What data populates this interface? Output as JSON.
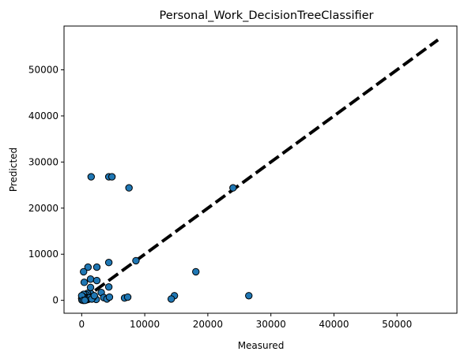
{
  "chart_data": {
    "type": "scatter",
    "title": "Personal_Work_DecisionTreeClassifier",
    "xlabel": "Measured",
    "ylabel": "Predicted",
    "xlim": [
      -2800,
      59500
    ],
    "ylim": [
      -2800,
      59500
    ],
    "xticks": [
      0,
      10000,
      20000,
      30000,
      40000,
      50000
    ],
    "yticks": [
      0,
      10000,
      20000,
      30000,
      40000,
      50000
    ],
    "grid": false,
    "point_color": "#1f77b4",
    "point_edge_color": "#000000",
    "reference_line": {
      "from": [
        0,
        0
      ],
      "to": [
        56500,
        56500
      ],
      "color": "#000000",
      "style": "dashed"
    },
    "points": [
      {
        "x": 1500,
        "y": 26800
      },
      {
        "x": 4300,
        "y": 26800
      },
      {
        "x": 4800,
        "y": 26800
      },
      {
        "x": 7500,
        "y": 24400
      },
      {
        "x": 24000,
        "y": 24400
      },
      {
        "x": 4300,
        "y": 8200
      },
      {
        "x": 8600,
        "y": 8600
      },
      {
        "x": 18100,
        "y": 6200
      },
      {
        "x": 1000,
        "y": 7200
      },
      {
        "x": 2400,
        "y": 7200
      },
      {
        "x": 300,
        "y": 6200
      },
      {
        "x": 1400,
        "y": 4600
      },
      {
        "x": 2400,
        "y": 4300
      },
      {
        "x": 400,
        "y": 3900
      },
      {
        "x": 4300,
        "y": 2900
      },
      {
        "x": 1400,
        "y": 2800
      },
      {
        "x": 3100,
        "y": 1700
      },
      {
        "x": 14700,
        "y": 1000
      },
      {
        "x": 26500,
        "y": 1000
      },
      {
        "x": 14200,
        "y": 300
      },
      {
        "x": 6800,
        "y": 500
      },
      {
        "x": 7300,
        "y": 700
      },
      {
        "x": 3500,
        "y": 600
      },
      {
        "x": 4000,
        "y": 300
      },
      {
        "x": 4400,
        "y": 700
      },
      {
        "x": 2300,
        "y": 200
      },
      {
        "x": 1800,
        "y": 700
      },
      {
        "x": 1500,
        "y": 1400
      },
      {
        "x": 1100,
        "y": 1000
      },
      {
        "x": 900,
        "y": 1500
      },
      {
        "x": 700,
        "y": 1200
      },
      {
        "x": 500,
        "y": 900
      },
      {
        "x": 300,
        "y": 1300
      },
      {
        "x": 200,
        "y": 800
      },
      {
        "x": 100,
        "y": 600
      },
      {
        "x": 0,
        "y": 400
      },
      {
        "x": 150,
        "y": 200
      },
      {
        "x": 300,
        "y": 100
      },
      {
        "x": 600,
        "y": 300
      },
      {
        "x": 800,
        "y": 500
      },
      {
        "x": 1000,
        "y": 200
      },
      {
        "x": 1200,
        "y": 500
      },
      {
        "x": 50,
        "y": 50
      },
      {
        "x": 400,
        "y": 500
      },
      {
        "x": 0,
        "y": 1000
      },
      {
        "x": 700,
        "y": 100
      },
      {
        "x": 1600,
        "y": 300
      },
      {
        "x": 2000,
        "y": 1000
      },
      {
        "x": 250,
        "y": 0
      },
      {
        "x": 500,
        "y": 0
      }
    ]
  }
}
